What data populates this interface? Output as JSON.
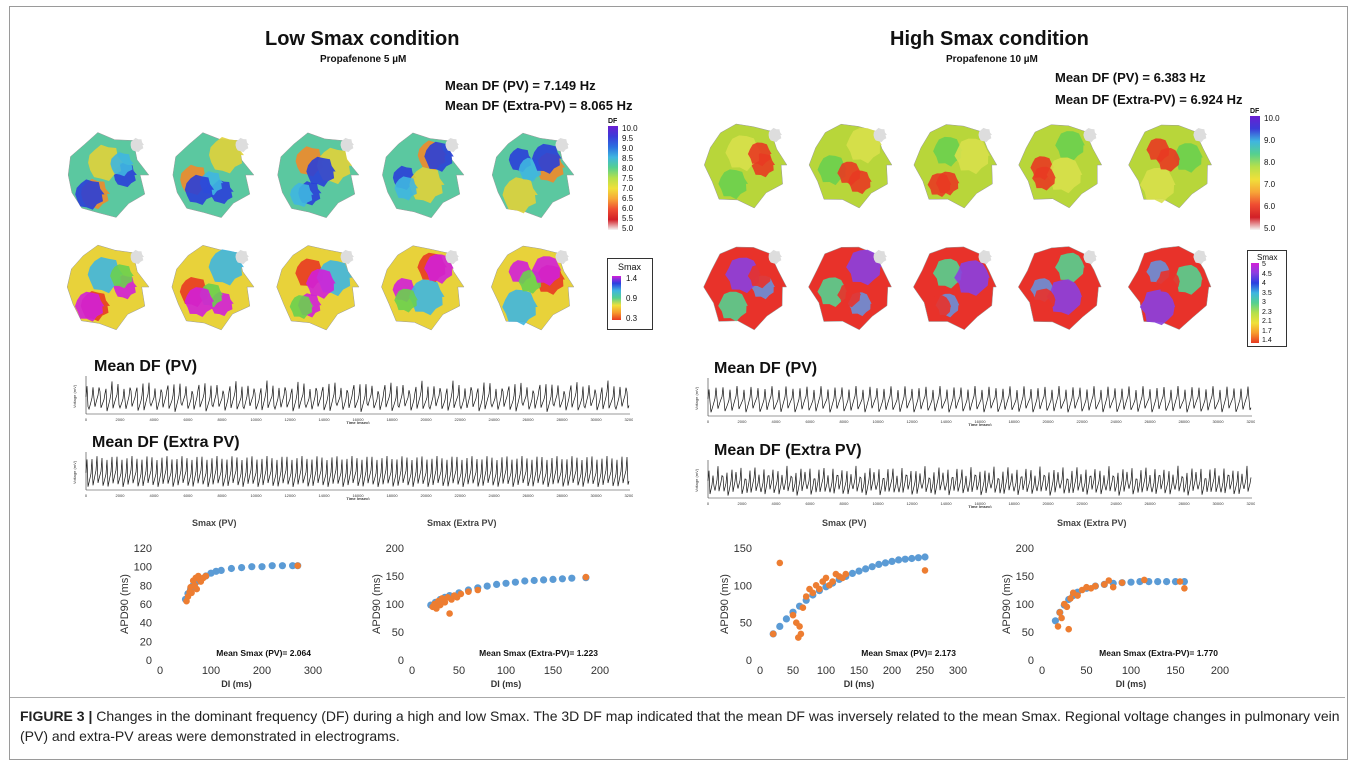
{
  "panels": [
    {
      "title": "Low Smax condition",
      "subtitle": "Propafenone 5 µM",
      "mean_df_pv": "Mean DF (PV) = 7.149 Hz",
      "mean_df_extra": "Mean DF (Extra-PV) = 8.065 Hz",
      "df_scale": {
        "title": "DF",
        "labels": [
          "10.0",
          "9.5",
          "9.0",
          "8.5",
          "8.0",
          "7.5",
          "7.0",
          "6.5",
          "6.0",
          "5.5",
          "5.0"
        ]
      },
      "smax_scale": {
        "title": "Smax",
        "labels": [
          "1.4",
          "0.9",
          "0.3"
        ]
      },
      "egm_pv_title": "Mean DF (PV)",
      "egm_extra_title": "Mean DF (Extra PV)",
      "egm_ylabel": "Voltage (mV)",
      "egm_xlabel": "Time (msec)",
      "egm_ticks": [
        "0",
        "2000",
        "4000",
        "6000",
        "8000",
        "10000",
        "12000",
        "14000",
        "16000",
        "18000",
        "20000",
        "22000",
        "24000",
        "26000",
        "28000",
        "30000",
        "32000"
      ],
      "sp_pv_title": "Smax (PV)",
      "sp_extra_title": "Smax (Extra PV)"
    },
    {
      "title": "High Smax condition",
      "subtitle": "Propafenone 10 µM",
      "mean_df_pv": "Mean DF (PV) = 6.383 Hz",
      "mean_df_extra": "Mean DF (Extra-PV) = 6.924 Hz",
      "df_scale": {
        "title": "DF",
        "labels": [
          "10.0",
          "9.0",
          "8.0",
          "7.0",
          "6.0",
          "5.0"
        ]
      },
      "smax_scale": {
        "title": "Smax",
        "labels": [
          "5",
          "4.5",
          "4",
          "3.5",
          "3",
          "2.3",
          "2.1",
          "1.7",
          "1.4"
        ]
      },
      "egm_pv_title": "Mean DF (PV)",
      "egm_extra_title": "Mean DF (Extra PV)",
      "egm_ylabel": "Voltage (mV)",
      "egm_xlabel": "Time (msec)",
      "egm_ticks": [
        "0",
        "2000",
        "4000",
        "6000",
        "8000",
        "10000",
        "12000",
        "14000",
        "16000",
        "18000",
        "20000",
        "22000",
        "24000",
        "26000",
        "28000",
        "30000",
        "32000"
      ],
      "sp_pv_title": "Smax (PV)",
      "sp_extra_title": "Smax (Extra PV)"
    }
  ],
  "chart_data": [
    {
      "type": "scatter",
      "xlabel": "DI (ms)",
      "ylabel": "APD90 (ms)",
      "xlim": [
        0,
        300
      ],
      "ylim": [
        0,
        120
      ],
      "xticks": [
        "0",
        "100",
        "200",
        "300"
      ],
      "yticks": [
        "0",
        "20",
        "40",
        "60",
        "80",
        "100",
        "120"
      ],
      "annotation": "Mean Smax (PV)= 2.064",
      "series": [
        {
          "color": "#5b9bd5",
          "points": [
            [
              50,
              65
            ],
            [
              55,
              71
            ],
            [
              60,
              76
            ],
            [
              65,
              80
            ],
            [
              70,
              83
            ],
            [
              80,
              87
            ],
            [
              90,
              90
            ],
            [
              100,
              93
            ],
            [
              110,
              95
            ],
            [
              120,
              96
            ],
            [
              140,
              98
            ],
            [
              160,
              99
            ],
            [
              180,
              100
            ],
            [
              200,
              100
            ],
            [
              220,
              101
            ],
            [
              240,
              101
            ],
            [
              260,
              101
            ],
            [
              270,
              101
            ]
          ]
        },
        {
          "color": "#ed7d31",
          "points": [
            [
              52,
              63
            ],
            [
              55,
              68
            ],
            [
              58,
              73
            ],
            [
              60,
              78
            ],
            [
              62,
              72
            ],
            [
              65,
              85
            ],
            [
              68,
              80
            ],
            [
              70,
              88
            ],
            [
              72,
              76
            ],
            [
              75,
              90
            ],
            [
              78,
              86
            ],
            [
              80,
              84
            ],
            [
              85,
              88
            ],
            [
              90,
              90
            ],
            [
              270,
              101
            ]
          ]
        }
      ]
    },
    {
      "type": "scatter",
      "xlabel": "DI (ms)",
      "ylabel": "APD90 (ms)",
      "xlim": [
        0,
        200
      ],
      "ylim": [
        0,
        200
      ],
      "xticks": [
        "0",
        "50",
        "100",
        "150",
        "200"
      ],
      "yticks": [
        "0",
        "50",
        "100",
        "150",
        "200"
      ],
      "annotation": "Mean Smax (Extra-PV)= 1.223",
      "series": [
        {
          "color": "#5b9bd5",
          "points": [
            [
              20,
              98
            ],
            [
              25,
              103
            ],
            [
              30,
              108
            ],
            [
              35,
              112
            ],
            [
              40,
              115
            ],
            [
              50,
              120
            ],
            [
              60,
              125
            ],
            [
              70,
              129
            ],
            [
              80,
              132
            ],
            [
              90,
              135
            ],
            [
              100,
              137
            ],
            [
              110,
              139
            ],
            [
              120,
              141
            ],
            [
              130,
              142
            ],
            [
              140,
              143
            ],
            [
              150,
              144
            ],
            [
              160,
              145
            ],
            [
              170,
              146
            ],
            [
              185,
              147
            ]
          ]
        },
        {
          "color": "#ed7d31",
          "points": [
            [
              22,
              95
            ],
            [
              24,
              100
            ],
            [
              26,
              92
            ],
            [
              28,
              105
            ],
            [
              30,
              98
            ],
            [
              32,
              110
            ],
            [
              35,
              103
            ],
            [
              38,
              112
            ],
            [
              40,
              83
            ],
            [
              42,
              108
            ],
            [
              45,
              115
            ],
            [
              48,
              112
            ],
            [
              52,
              118
            ],
            [
              60,
              122
            ],
            [
              70,
              125
            ],
            [
              185,
              148
            ]
          ]
        }
      ]
    },
    {
      "type": "scatter",
      "xlabel": "DI (ms)",
      "ylabel": "APD90 (ms)",
      "xlim": [
        0,
        300
      ],
      "ylim": [
        0,
        150
      ],
      "xticks": [
        "0",
        "50",
        "100",
        "150",
        "200",
        "250",
        "300"
      ],
      "yticks": [
        "0",
        "50",
        "100",
        "150"
      ],
      "annotation": "Mean Smax (PV)= 2.173",
      "series": [
        {
          "color": "#5b9bd5",
          "points": [
            [
              20,
              35
            ],
            [
              30,
              45
            ],
            [
              40,
              55
            ],
            [
              50,
              64
            ],
            [
              60,
              72
            ],
            [
              70,
              80
            ],
            [
              80,
              87
            ],
            [
              90,
              93
            ],
            [
              100,
              98
            ],
            [
              110,
              103
            ],
            [
              120,
              108
            ],
            [
              130,
              112
            ],
            [
              140,
              116
            ],
            [
              150,
              119
            ],
            [
              160,
              122
            ],
            [
              170,
              125
            ],
            [
              180,
              128
            ],
            [
              190,
              130
            ],
            [
              200,
              132
            ],
            [
              210,
              134
            ],
            [
              220,
              135
            ],
            [
              230,
              136
            ],
            [
              240,
              137
            ],
            [
              250,
              138
            ]
          ]
        },
        {
          "color": "#ed7d31",
          "points": [
            [
              20,
              35
            ],
            [
              30,
              130
            ],
            [
              50,
              60
            ],
            [
              55,
              50
            ],
            [
              58,
              30
            ],
            [
              60,
              45
            ],
            [
              62,
              35
            ],
            [
              65,
              70
            ],
            [
              70,
              85
            ],
            [
              75,
              95
            ],
            [
              80,
              90
            ],
            [
              85,
              100
            ],
            [
              90,
              95
            ],
            [
              95,
              105
            ],
            [
              100,
              110
            ],
            [
              105,
              100
            ],
            [
              110,
              105
            ],
            [
              115,
              115
            ],
            [
              120,
              112
            ],
            [
              125,
              110
            ],
            [
              130,
              115
            ],
            [
              250,
              120
            ]
          ]
        }
      ]
    },
    {
      "type": "scatter",
      "xlabel": "DI (ms)",
      "ylabel": "APD90 (ms)",
      "xlim": [
        0,
        200
      ],
      "ylim": [
        0,
        200
      ],
      "xticks": [
        "0",
        "50",
        "100",
        "150",
        "200"
      ],
      "yticks": [
        "0",
        "50",
        "100",
        "150",
        "200"
      ],
      "annotation": "Mean Smax (Extra-PV)= 1.770",
      "series": [
        {
          "color": "#5b9bd5",
          "points": [
            [
              15,
              70
            ],
            [
              20,
              85
            ],
            [
              25,
              98
            ],
            [
              30,
              108
            ],
            [
              35,
              115
            ],
            [
              40,
              121
            ],
            [
              50,
              128
            ],
            [
              60,
              132
            ],
            [
              70,
              135
            ],
            [
              80,
              137
            ],
            [
              90,
              138
            ],
            [
              100,
              139
            ],
            [
              110,
              140
            ],
            [
              120,
              140
            ],
            [
              130,
              140
            ],
            [
              140,
              140
            ],
            [
              150,
              140
            ],
            [
              160,
              140
            ]
          ]
        },
        {
          "color": "#ed7d31",
          "points": [
            [
              18,
              60
            ],
            [
              20,
              85
            ],
            [
              22,
              75
            ],
            [
              25,
              100
            ],
            [
              28,
              95
            ],
            [
              30,
              55
            ],
            [
              32,
              110
            ],
            [
              35,
              120
            ],
            [
              40,
              115
            ],
            [
              45,
              125
            ],
            [
              50,
              130
            ],
            [
              55,
              128
            ],
            [
              60,
              132
            ],
            [
              70,
              135
            ],
            [
              75,
              142
            ],
            [
              80,
              130
            ],
            [
              90,
              138
            ],
            [
              115,
              143
            ],
            [
              155,
              140
            ],
            [
              160,
              128
            ]
          ]
        }
      ]
    }
  ],
  "caption": {
    "lead": "FIGURE 3 |",
    "text": " Changes in the dominant frequency (DF) during a high and low Smax. The 3D DF map indicated that the mean DF was inversely related to the mean Smax. Regional voltage changes in pulmonary vein (PV) and extra-PV areas were demonstrated in electrograms."
  }
}
